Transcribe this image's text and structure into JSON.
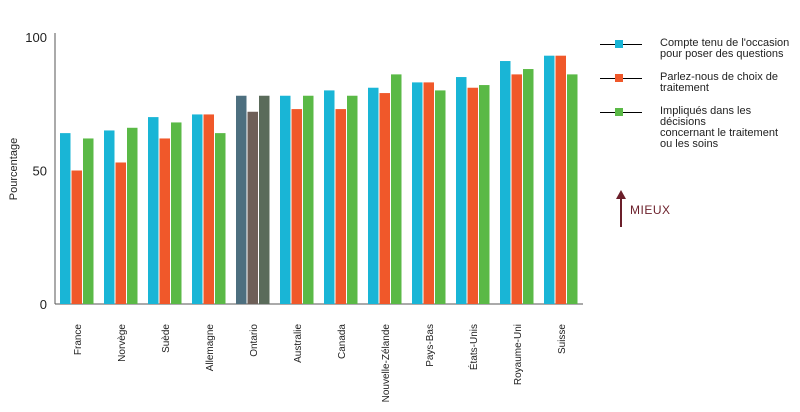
{
  "chart_data": {
    "type": "bar",
    "ylabel": "Pourcentage",
    "ylim": [
      0,
      100
    ],
    "yticks": [
      0,
      50,
      100
    ],
    "grid": false,
    "legend_position": "top-right",
    "categories": [
      "France",
      "Norvège",
      "Suède",
      "Allemagne",
      "Ontario",
      "Australie",
      "Canada",
      "Nouvelle-Zélande",
      "Pays-Bas",
      "États-Unis",
      "Royaume-Uni",
      "Suisse"
    ],
    "highlight_category": "Ontario",
    "series": [
      {
        "name": "Compte tenu de l'occasion pour poser des questions",
        "color": "#19b5d6",
        "highlight_color": "#4d6f7f",
        "values": [
          64,
          65,
          70,
          71,
          78,
          78,
          80,
          81,
          83,
          85,
          91,
          93
        ]
      },
      {
        "name": "Parlez-nous de choix de traitement",
        "color": "#f0582a",
        "highlight_color": "#6e5f58",
        "values": [
          50,
          53,
          62,
          71,
          72,
          73,
          73,
          79,
          83,
          81,
          86,
          93
        ]
      },
      {
        "name": "Impliqués dans les décisions concernant le traitement ou les soins",
        "color": "#5ab946",
        "highlight_color": "#5a6b5a",
        "values": [
          62,
          66,
          68,
          64,
          78,
          78,
          78,
          86,
          80,
          82,
          88,
          86
        ]
      }
    ]
  },
  "legend": {
    "items": [
      {
        "label": "Compte tenu de l'occasion\npour poser des questions",
        "color": "#19b5d6"
      },
      {
        "label": "Parlez-nous de choix de\ntraitement",
        "color": "#f0582a"
      },
      {
        "label": "Impliqués dans les décisions\nconcernant le traitement\nou les soins",
        "color": "#5ab946"
      }
    ]
  },
  "annotation": {
    "label": "MIEUX",
    "color": "#6b1f2a",
    "icon": "arrow-up-icon"
  }
}
